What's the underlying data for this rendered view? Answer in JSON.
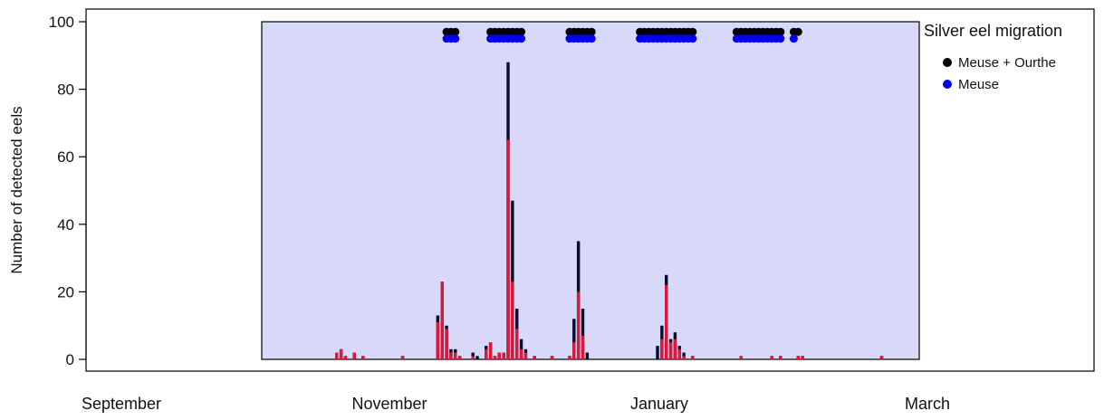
{
  "chart_data": {
    "type": "bar",
    "ylabel": "Number of detected eels",
    "ylim": [
      0,
      100
    ],
    "yticks": [
      0,
      20,
      40,
      60,
      80,
      100
    ],
    "x_tick_labels": [
      "September",
      "November",
      "January",
      "March"
    ],
    "legend": {
      "title": "Silver eel migration",
      "placement": "top-right",
      "entries": [
        {
          "label": "Meuse + Ourthe",
          "color": "#000000"
        },
        {
          "label": "Meuse",
          "color": "#0000ee"
        }
      ]
    },
    "colors": {
      "panel_background": "#d8d8f8",
      "bar_total": "#0a0a2a",
      "bar_meuse": "#d8193c",
      "point_meuse_ourthe": "#000000",
      "point_meuse": "#0000ee"
    },
    "bars": [
      {
        "date": "Oct 20",
        "total": 2,
        "meuse": 2
      },
      {
        "date": "Oct 21",
        "total": 3,
        "meuse": 3
      },
      {
        "date": "Oct 22",
        "total": 1,
        "meuse": 1
      },
      {
        "date": "Oct 24",
        "total": 2,
        "meuse": 2
      },
      {
        "date": "Oct 26",
        "total": 1,
        "meuse": 1
      },
      {
        "date": "Nov 4",
        "total": 1,
        "meuse": 1
      },
      {
        "date": "Nov 12",
        "total": 13,
        "meuse": 11
      },
      {
        "date": "Nov 13",
        "total": 23,
        "meuse": 23
      },
      {
        "date": "Nov 14",
        "total": 10,
        "meuse": 9
      },
      {
        "date": "Nov 15",
        "total": 3,
        "meuse": 2
      },
      {
        "date": "Nov 16",
        "total": 3,
        "meuse": 2
      },
      {
        "date": "Nov 17",
        "total": 1,
        "meuse": 1
      },
      {
        "date": "Nov 20",
        "total": 2,
        "meuse": 1
      },
      {
        "date": "Nov 21",
        "total": 1,
        "meuse": 0
      },
      {
        "date": "Nov 23",
        "total": 4,
        "meuse": 3
      },
      {
        "date": "Nov 24",
        "total": 5,
        "meuse": 5
      },
      {
        "date": "Nov 25",
        "total": 1,
        "meuse": 1
      },
      {
        "date": "Nov 26",
        "total": 2,
        "meuse": 2
      },
      {
        "date": "Nov 27",
        "total": 2,
        "meuse": 2
      },
      {
        "date": "Nov 28",
        "total": 88,
        "meuse": 65
      },
      {
        "date": "Nov 29",
        "total": 47,
        "meuse": 23
      },
      {
        "date": "Nov 30",
        "total": 15,
        "meuse": 9
      },
      {
        "date": "Dec 1",
        "total": 6,
        "meuse": 3
      },
      {
        "date": "Dec 2",
        "total": 3,
        "meuse": 2
      },
      {
        "date": "Dec 4",
        "total": 1,
        "meuse": 1
      },
      {
        "date": "Dec 8",
        "total": 1,
        "meuse": 1
      },
      {
        "date": "Dec 12",
        "total": 1,
        "meuse": 1
      },
      {
        "date": "Dec 13",
        "total": 12,
        "meuse": 5
      },
      {
        "date": "Dec 14",
        "total": 35,
        "meuse": 20
      },
      {
        "date": "Dec 15",
        "total": 15,
        "meuse": 7
      },
      {
        "date": "Dec 16",
        "total": 2,
        "meuse": 0
      },
      {
        "date": "Jan 1",
        "total": 4,
        "meuse": 0
      },
      {
        "date": "Jan 2",
        "total": 10,
        "meuse": 6
      },
      {
        "date": "Jan 3",
        "total": 25,
        "meuse": 22
      },
      {
        "date": "Jan 4",
        "total": 6,
        "meuse": 5
      },
      {
        "date": "Jan 5",
        "total": 8,
        "meuse": 6
      },
      {
        "date": "Jan 6",
        "total": 4,
        "meuse": 3
      },
      {
        "date": "Jan 7",
        "total": 2,
        "meuse": 1
      },
      {
        "date": "Jan 9",
        "total": 1,
        "meuse": 1
      },
      {
        "date": "Jan 20",
        "total": 1,
        "meuse": 1
      },
      {
        "date": "Jan 27",
        "total": 1,
        "meuse": 1
      },
      {
        "date": "Jan 29",
        "total": 1,
        "meuse": 1
      },
      {
        "date": "Feb 2",
        "total": 1,
        "meuse": 1
      },
      {
        "date": "Feb 3",
        "total": 1,
        "meuse": 1
      },
      {
        "date": "Feb 21",
        "total": 1,
        "meuse": 1
      }
    ],
    "migration_points": {
      "meuse_ourthe_level": 97,
      "meuse_level": 95,
      "meuse_ourthe": [
        "Nov 14",
        "Nov 15",
        "Nov 16",
        "Nov 24",
        "Nov 25",
        "Nov 26",
        "Nov 27",
        "Nov 28",
        "Nov 29",
        "Nov 30",
        "Dec 1",
        "Dec 12",
        "Dec 13",
        "Dec 14",
        "Dec 15",
        "Dec 16",
        "Dec 17",
        "Dec 28",
        "Dec 29",
        "Dec 30",
        "Dec 31",
        "Jan 1",
        "Jan 2",
        "Jan 3",
        "Jan 4",
        "Jan 5",
        "Jan 6",
        "Jan 7",
        "Jan 8",
        "Jan 9",
        "Jan 19",
        "Jan 20",
        "Jan 21",
        "Jan 22",
        "Jan 23",
        "Jan 24",
        "Jan 25",
        "Jan 26",
        "Jan 27",
        "Jan 28",
        "Jan 29",
        "Feb 1",
        "Feb 2"
      ],
      "meuse": [
        "Nov 14",
        "Nov 15",
        "Nov 16",
        "Nov 24",
        "Nov 25",
        "Nov 26",
        "Nov 27",
        "Nov 28",
        "Nov 29",
        "Nov 30",
        "Dec 1",
        "Dec 12",
        "Dec 13",
        "Dec 14",
        "Dec 15",
        "Dec 16",
        "Dec 17",
        "Dec 28",
        "Dec 29",
        "Dec 30",
        "Dec 31",
        "Jan 1",
        "Jan 2",
        "Jan 3",
        "Jan 4",
        "Jan 5",
        "Jan 6",
        "Jan 7",
        "Jan 8",
        "Jan 9",
        "Jan 19",
        "Jan 20",
        "Jan 21",
        "Jan 22",
        "Jan 23",
        "Jan 24",
        "Jan 25",
        "Jan 26",
        "Jan 27",
        "Jan 28",
        "Jan 29",
        "Feb 1"
      ]
    }
  }
}
